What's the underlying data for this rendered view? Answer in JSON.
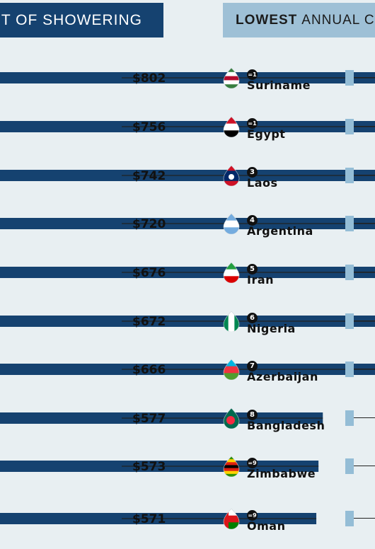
{
  "header_left": "ST OF SHOWERING",
  "header_right_bold": "LOWEST",
  "header_right_rest": "ANNUAL C",
  "colors": {
    "bar": "#154270",
    "header_left_bg": "#154270",
    "header_right_bg": "#9ec0d6",
    "right_bar": "#94bdd6",
    "background": "#e8eff2"
  },
  "chart_data": {
    "type": "bar",
    "orientation": "horizontal",
    "values": [
      802,
      756,
      742,
      720,
      676,
      672,
      666,
      577,
      573,
      571
    ],
    "value_labels": [
      "$802",
      "$756",
      "$742",
      "$720",
      "$676",
      "$672",
      "$666",
      "$577",
      "$573",
      "$571"
    ]
  },
  "ranking": [
    {
      "rank": "=1",
      "country": "Suriname",
      "flag": "suriname-flag-icon"
    },
    {
      "rank": "=1",
      "country": "Egypt",
      "flag": "egypt-flag-icon"
    },
    {
      "rank": "3",
      "country": "Laos",
      "flag": "laos-flag-icon"
    },
    {
      "rank": "4",
      "country": "Argentina",
      "flag": "argentina-flag-icon"
    },
    {
      "rank": "5",
      "country": "Iran",
      "flag": "iran-flag-icon"
    },
    {
      "rank": "6",
      "country": "Nigeria",
      "flag": "nigeria-flag-icon"
    },
    {
      "rank": "7",
      "country": "Azerbaijan",
      "flag": "azerbaijan-flag-icon"
    },
    {
      "rank": "8",
      "country": "Bangladesh",
      "flag": "bangladesh-flag-icon"
    },
    {
      "rank": "=9",
      "country": "Zimbabwe",
      "flag": "zimbabwe-flag-icon"
    },
    {
      "rank": "=9",
      "country": "Oman",
      "flag": "oman-flag-icon"
    }
  ]
}
